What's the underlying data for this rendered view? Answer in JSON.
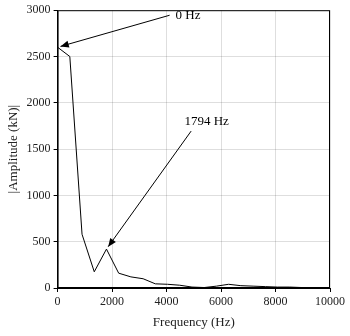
{
  "chart_data": {
    "type": "line",
    "x_label": "Frequency (Hz)",
    "y_label": "|Amplitude (kN)|",
    "x": [
      0,
      448.5,
      897,
      1345.5,
      1794,
      2242.5,
      2691,
      3139.5,
      3588,
      4036.5,
      4485,
      4933.5,
      5382,
      5830.5,
      6279,
      6727.5,
      7176,
      7624.5,
      8073,
      8521.5,
      8970,
      9418.5,
      9867
    ],
    "values": [
      2600,
      2500,
      580,
      175,
      420,
      160,
      120,
      100,
      45,
      40,
      30,
      10,
      5,
      20,
      40,
      25,
      20,
      15,
      10,
      10,
      5,
      5,
      5
    ],
    "color": "#000000",
    "xlim": [
      0,
      10000
    ],
    "xticks": [
      0,
      2000,
      4000,
      6000,
      8000,
      10000
    ],
    "ylim": [
      0,
      3000
    ],
    "yticks": [
      0,
      500,
      1000,
      1500,
      2000,
      2500,
      3000
    ],
    "grid": true,
    "annotations": [
      {
        "text": "0 Hz",
        "x": 0
      },
      {
        "text": "1794 Hz",
        "x": 1794
      }
    ]
  }
}
